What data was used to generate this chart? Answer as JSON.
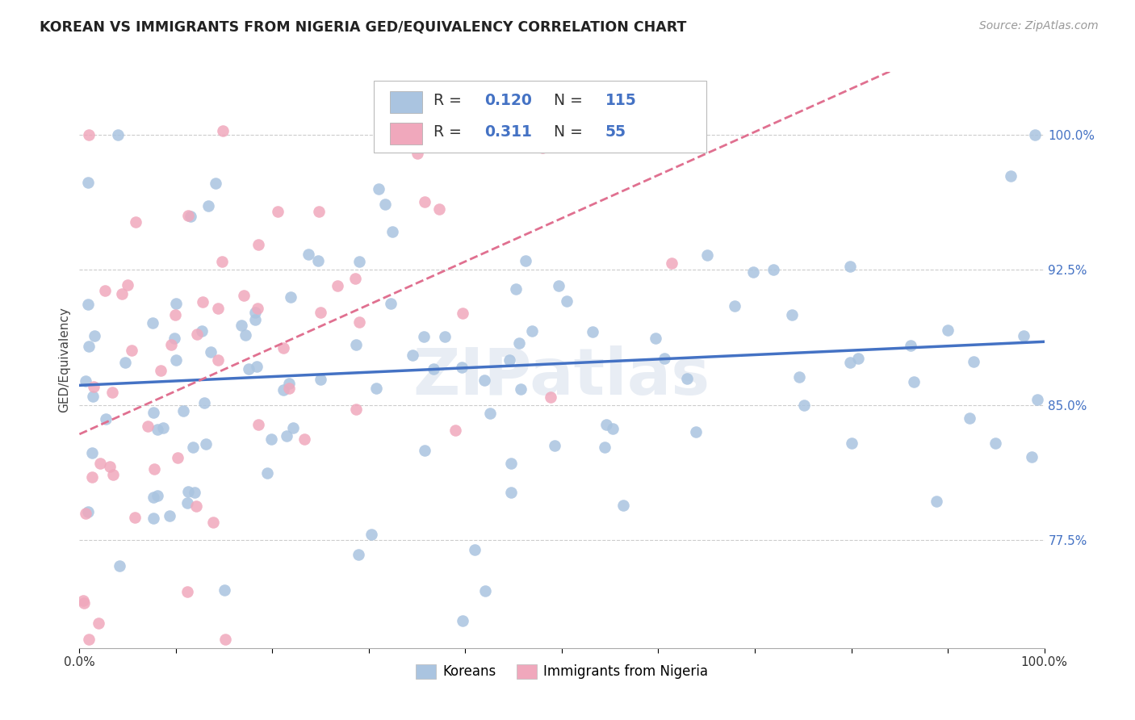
{
  "title": "KOREAN VS IMMIGRANTS FROM NIGERIA GED/EQUIVALENCY CORRELATION CHART",
  "source": "Source: ZipAtlas.com",
  "ylabel": "GED/Equivalency",
  "ytick_labels": [
    "100.0%",
    "92.5%",
    "85.0%",
    "77.5%"
  ],
  "ytick_values": [
    1.0,
    0.925,
    0.85,
    0.775
  ],
  "xlim": [
    0.0,
    1.0
  ],
  "ylim": [
    0.715,
    1.035
  ],
  "korean_color": "#aac4e0",
  "nigeria_color": "#f0a8bc",
  "korean_line_color": "#4472c4",
  "nigeria_line_color": "#e07090",
  "r_korean": 0.12,
  "n_korean": 115,
  "r_nigeria": 0.311,
  "n_nigeria": 55,
  "watermark": "ZIPatlas",
  "legend_koreans": "Koreans",
  "legend_nigeria": "Immigrants from Nigeria",
  "background_color": "#ffffff",
  "grid_color": "#cccccc",
  "title_color": "#222222",
  "source_color": "#999999"
}
